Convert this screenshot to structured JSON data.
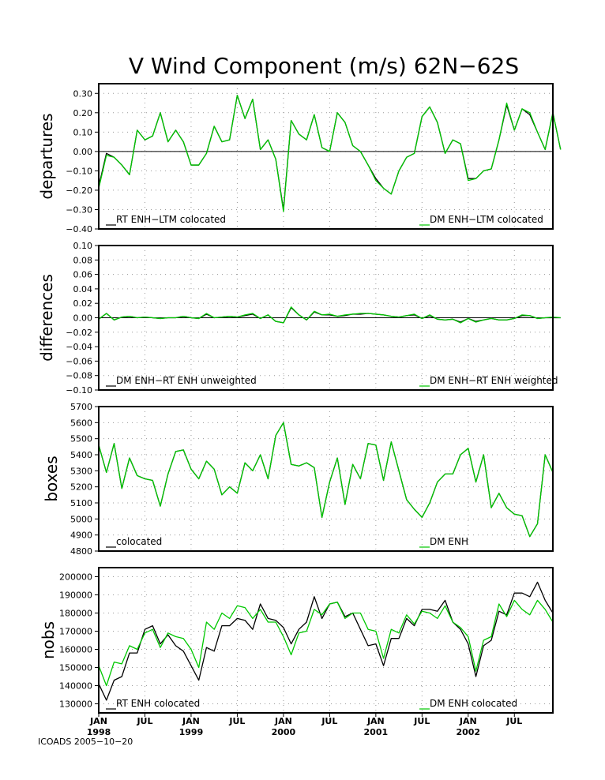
{
  "title": "V Wind Component (m/s) 62N−62S",
  "credit": "ICOADS 2005−10−20",
  "x_axis": {
    "ticks": [
      {
        "m": 0,
        "label": "JAN"
      },
      {
        "m": 6,
        "label": "JUL"
      },
      {
        "m": 12,
        "label": "JAN"
      },
      {
        "m": 18,
        "label": "JUL"
      },
      {
        "m": 24,
        "label": "JAN"
      },
      {
        "m": 30,
        "label": "JUL"
      },
      {
        "m": 36,
        "label": "JAN"
      },
      {
        "m": 42,
        "label": "JUL"
      },
      {
        "m": 48,
        "label": "JAN"
      },
      {
        "m": 54,
        "label": "JUL"
      }
    ],
    "years": [
      {
        "m": 0,
        "label": "1998"
      },
      {
        "m": 12,
        "label": "1999"
      },
      {
        "m": 24,
        "label": "2000"
      },
      {
        "m": 36,
        "label": "2001"
      },
      {
        "m": 48,
        "label": "2002"
      }
    ]
  },
  "chart_data": [
    {
      "type": "line",
      "ylabel": "departures",
      "ylim": [
        -0.4,
        0.35
      ],
      "yticks": [
        -0.4,
        -0.3,
        -0.2,
        -0.1,
        0.0,
        0.1,
        0.2,
        0.3
      ],
      "tick_format": "fixed2",
      "zero_line": true,
      "x_start": "1998-01",
      "series": [
        {
          "name": "RT ENH−LTM colocated",
          "color": "#000000",
          "values": [
            -0.18,
            -0.01,
            -0.03,
            -0.07,
            -0.12,
            0.11,
            0.06,
            0.08,
            0.2,
            0.05,
            0.11,
            0.05,
            -0.07,
            -0.07,
            -0.01,
            0.13,
            0.05,
            0.06,
            0.29,
            0.17,
            0.27,
            0.01,
            0.06,
            -0.04,
            -0.3,
            0.16,
            0.09,
            0.06,
            0.19,
            0.02,
            0.0,
            0.2,
            0.15,
            0.03,
            0.0,
            -0.07,
            -0.14,
            -0.19,
            -0.22,
            -0.1,
            -0.03,
            -0.01,
            0.18,
            0.23,
            0.15,
            -0.01,
            0.06,
            0.04,
            -0.14,
            -0.14,
            -0.1,
            -0.09,
            0.06,
            0.24,
            0.11,
            0.22,
            0.19,
            0.1,
            0.01,
            0.2,
            0.01
          ]
        },
        {
          "name": "DM ENH−LTM colocated",
          "color": "#00c800",
          "values": [
            -0.19,
            -0.02,
            -0.03,
            -0.07,
            -0.12,
            0.11,
            0.06,
            0.08,
            0.2,
            0.05,
            0.11,
            0.05,
            -0.07,
            -0.07,
            -0.01,
            0.13,
            0.05,
            0.06,
            0.29,
            0.17,
            0.27,
            0.01,
            0.06,
            -0.04,
            -0.31,
            0.16,
            0.09,
            0.06,
            0.19,
            0.02,
            0.0,
            0.2,
            0.15,
            0.03,
            0.0,
            -0.07,
            -0.15,
            -0.19,
            -0.22,
            -0.1,
            -0.03,
            -0.01,
            0.18,
            0.23,
            0.15,
            -0.01,
            0.06,
            0.04,
            -0.15,
            -0.14,
            -0.1,
            -0.09,
            0.06,
            0.25,
            0.11,
            0.22,
            0.2,
            0.1,
            0.01,
            0.2,
            0.01
          ]
        }
      ],
      "legend": [
        "RT ENH−LTM colocated",
        "DM ENH−LTM colocated"
      ]
    },
    {
      "type": "line",
      "ylabel": "differences",
      "ylim": [
        -0.1,
        0.1
      ],
      "yticks": [
        -0.1,
        -0.08,
        -0.06,
        -0.04,
        -0.02,
        0.0,
        0.02,
        0.04,
        0.06,
        0.08,
        0.1
      ],
      "tick_format": "fixed2",
      "zero_line": true,
      "x_start": "1998-01",
      "series": [
        {
          "name": "DM ENH−RT ENH unweighted",
          "color": "#000000",
          "values": [
            -0.002,
            0.006,
            -0.003,
            0.001,
            0.002,
            0.0,
            0.001,
            0.0,
            -0.001,
            0.0,
            0.0,
            0.002,
            0.0,
            -0.001,
            0.005,
            0.0,
            0.001,
            0.002,
            0.001,
            0.003,
            0.005,
            -0.001,
            0.004,
            -0.005,
            -0.007,
            0.014,
            0.004,
            -0.003,
            0.008,
            0.004,
            0.004,
            0.002,
            0.003,
            0.005,
            0.005,
            0.006,
            0.005,
            0.004,
            0.002,
            0.001,
            0.003,
            0.004,
            -0.001,
            0.003,
            -0.002,
            -0.003,
            -0.002,
            -0.006,
            -0.001,
            -0.005,
            -0.003,
            -0.001,
            -0.003,
            -0.003,
            -0.001,
            0.003,
            0.003,
            -0.001,
            0.0,
            0.0,
            0.0
          ]
        },
        {
          "name": "DM ENH−RT ENH weighted",
          "color": "#00c800",
          "values": [
            -0.002,
            0.006,
            -0.003,
            0.001,
            0.002,
            0.0,
            0.001,
            0.0,
            -0.001,
            0.0,
            0.0,
            0.002,
            0.0,
            -0.001,
            0.006,
            0.0,
            0.001,
            0.002,
            0.001,
            0.004,
            0.006,
            -0.001,
            0.004,
            -0.005,
            -0.007,
            0.015,
            0.004,
            -0.003,
            0.009,
            0.004,
            0.005,
            0.002,
            0.004,
            0.005,
            0.006,
            0.006,
            0.005,
            0.004,
            0.002,
            0.001,
            0.003,
            0.005,
            -0.001,
            0.004,
            -0.002,
            -0.003,
            -0.002,
            -0.007,
            -0.001,
            -0.006,
            -0.003,
            -0.001,
            -0.003,
            -0.003,
            -0.001,
            0.004,
            0.003,
            -0.001,
            0.0,
            0.001,
            0.0
          ]
        }
      ],
      "legend": [
        "DM ENH−RT ENH unweighted",
        "DM ENH−RT ENH weighted"
      ]
    },
    {
      "type": "line",
      "ylabel": "boxes",
      "ylim": [
        4800,
        5700
      ],
      "yticks": [
        4800,
        4900,
        5000,
        5100,
        5200,
        5300,
        5400,
        5500,
        5600,
        5700
      ],
      "tick_format": "int",
      "zero_line": false,
      "x_start": "1998-01",
      "series": [
        {
          "name": "colocated",
          "color": "#000000",
          "values": [
            5460,
            5290,
            5470,
            5190,
            5380,
            5270,
            5250,
            5240,
            5080,
            5280,
            5420,
            5430,
            5310,
            5250,
            5360,
            5310,
            5150,
            5200,
            5160,
            5350,
            5300,
            5400,
            5250,
            5520,
            5600,
            5340,
            5330,
            5350,
            5320,
            5010,
            5230,
            5380,
            5090,
            5340,
            5250,
            5470,
            5460,
            5240,
            5480,
            5300,
            5120,
            5060,
            5010,
            5100,
            5230,
            5280,
            5280,
            5400,
            5440,
            5230,
            5400,
            5070,
            5160,
            5070,
            5030,
            5020,
            4890,
            4970,
            5400,
            5290
          ]
        },
        {
          "name": "DM ENH",
          "color": "#00c800",
          "values": [
            5460,
            5290,
            5470,
            5190,
            5380,
            5270,
            5250,
            5240,
            5080,
            5280,
            5420,
            5430,
            5310,
            5250,
            5360,
            5310,
            5150,
            5200,
            5160,
            5350,
            5300,
            5400,
            5250,
            5520,
            5600,
            5340,
            5330,
            5350,
            5320,
            5010,
            5230,
            5380,
            5090,
            5340,
            5250,
            5470,
            5460,
            5240,
            5480,
            5300,
            5120,
            5060,
            5010,
            5100,
            5230,
            5280,
            5280,
            5400,
            5440,
            5230,
            5400,
            5070,
            5160,
            5070,
            5030,
            5020,
            4890,
            4970,
            5400,
            5290
          ]
        }
      ],
      "legend": [
        "colocated",
        "DM ENH"
      ]
    },
    {
      "type": "line",
      "ylabel": "nobs",
      "ylim": [
        125000,
        205000
      ],
      "yticks": [
        130000,
        140000,
        150000,
        160000,
        170000,
        180000,
        190000,
        200000
      ],
      "tick_format": "int",
      "zero_line": false,
      "x_start": "1998-01",
      "series": [
        {
          "name": "RT ENH colocated",
          "color": "#000000",
          "values": [
            141000,
            132000,
            143000,
            145000,
            158000,
            158000,
            171000,
            173000,
            163000,
            168000,
            162000,
            159000,
            151000,
            143000,
            161000,
            159000,
            173000,
            173000,
            177000,
            176000,
            171000,
            185000,
            177000,
            176000,
            172000,
            163000,
            171000,
            175000,
            189000,
            177000,
            185000,
            186000,
            178000,
            180000,
            171000,
            162000,
            163000,
            151000,
            166000,
            166000,
            177000,
            173000,
            182000,
            182000,
            181000,
            187000,
            175000,
            171000,
            163000,
            145000,
            162000,
            165000,
            181000,
            179000,
            191000,
            191000,
            189000,
            197000,
            187000,
            180000
          ]
        },
        {
          "name": "DM ENH colocated",
          "color": "#00c800",
          "values": [
            151000,
            140000,
            153000,
            152000,
            162000,
            160000,
            169000,
            171000,
            161000,
            169000,
            167000,
            166000,
            160000,
            150000,
            175000,
            171000,
            180000,
            177000,
            184000,
            183000,
            177000,
            182000,
            175000,
            175000,
            167000,
            157000,
            169000,
            170000,
            182000,
            179000,
            185000,
            186000,
            177000,
            180000,
            180000,
            171000,
            170000,
            155000,
            171000,
            169000,
            179000,
            174000,
            181000,
            180000,
            177000,
            184000,
            175000,
            172000,
            167000,
            148000,
            165000,
            167000,
            185000,
            178000,
            187000,
            182000,
            179000,
            187000,
            182000,
            175000
          ]
        }
      ],
      "legend": [
        "RT ENH colocated",
        "DM ENH colocated"
      ]
    }
  ]
}
